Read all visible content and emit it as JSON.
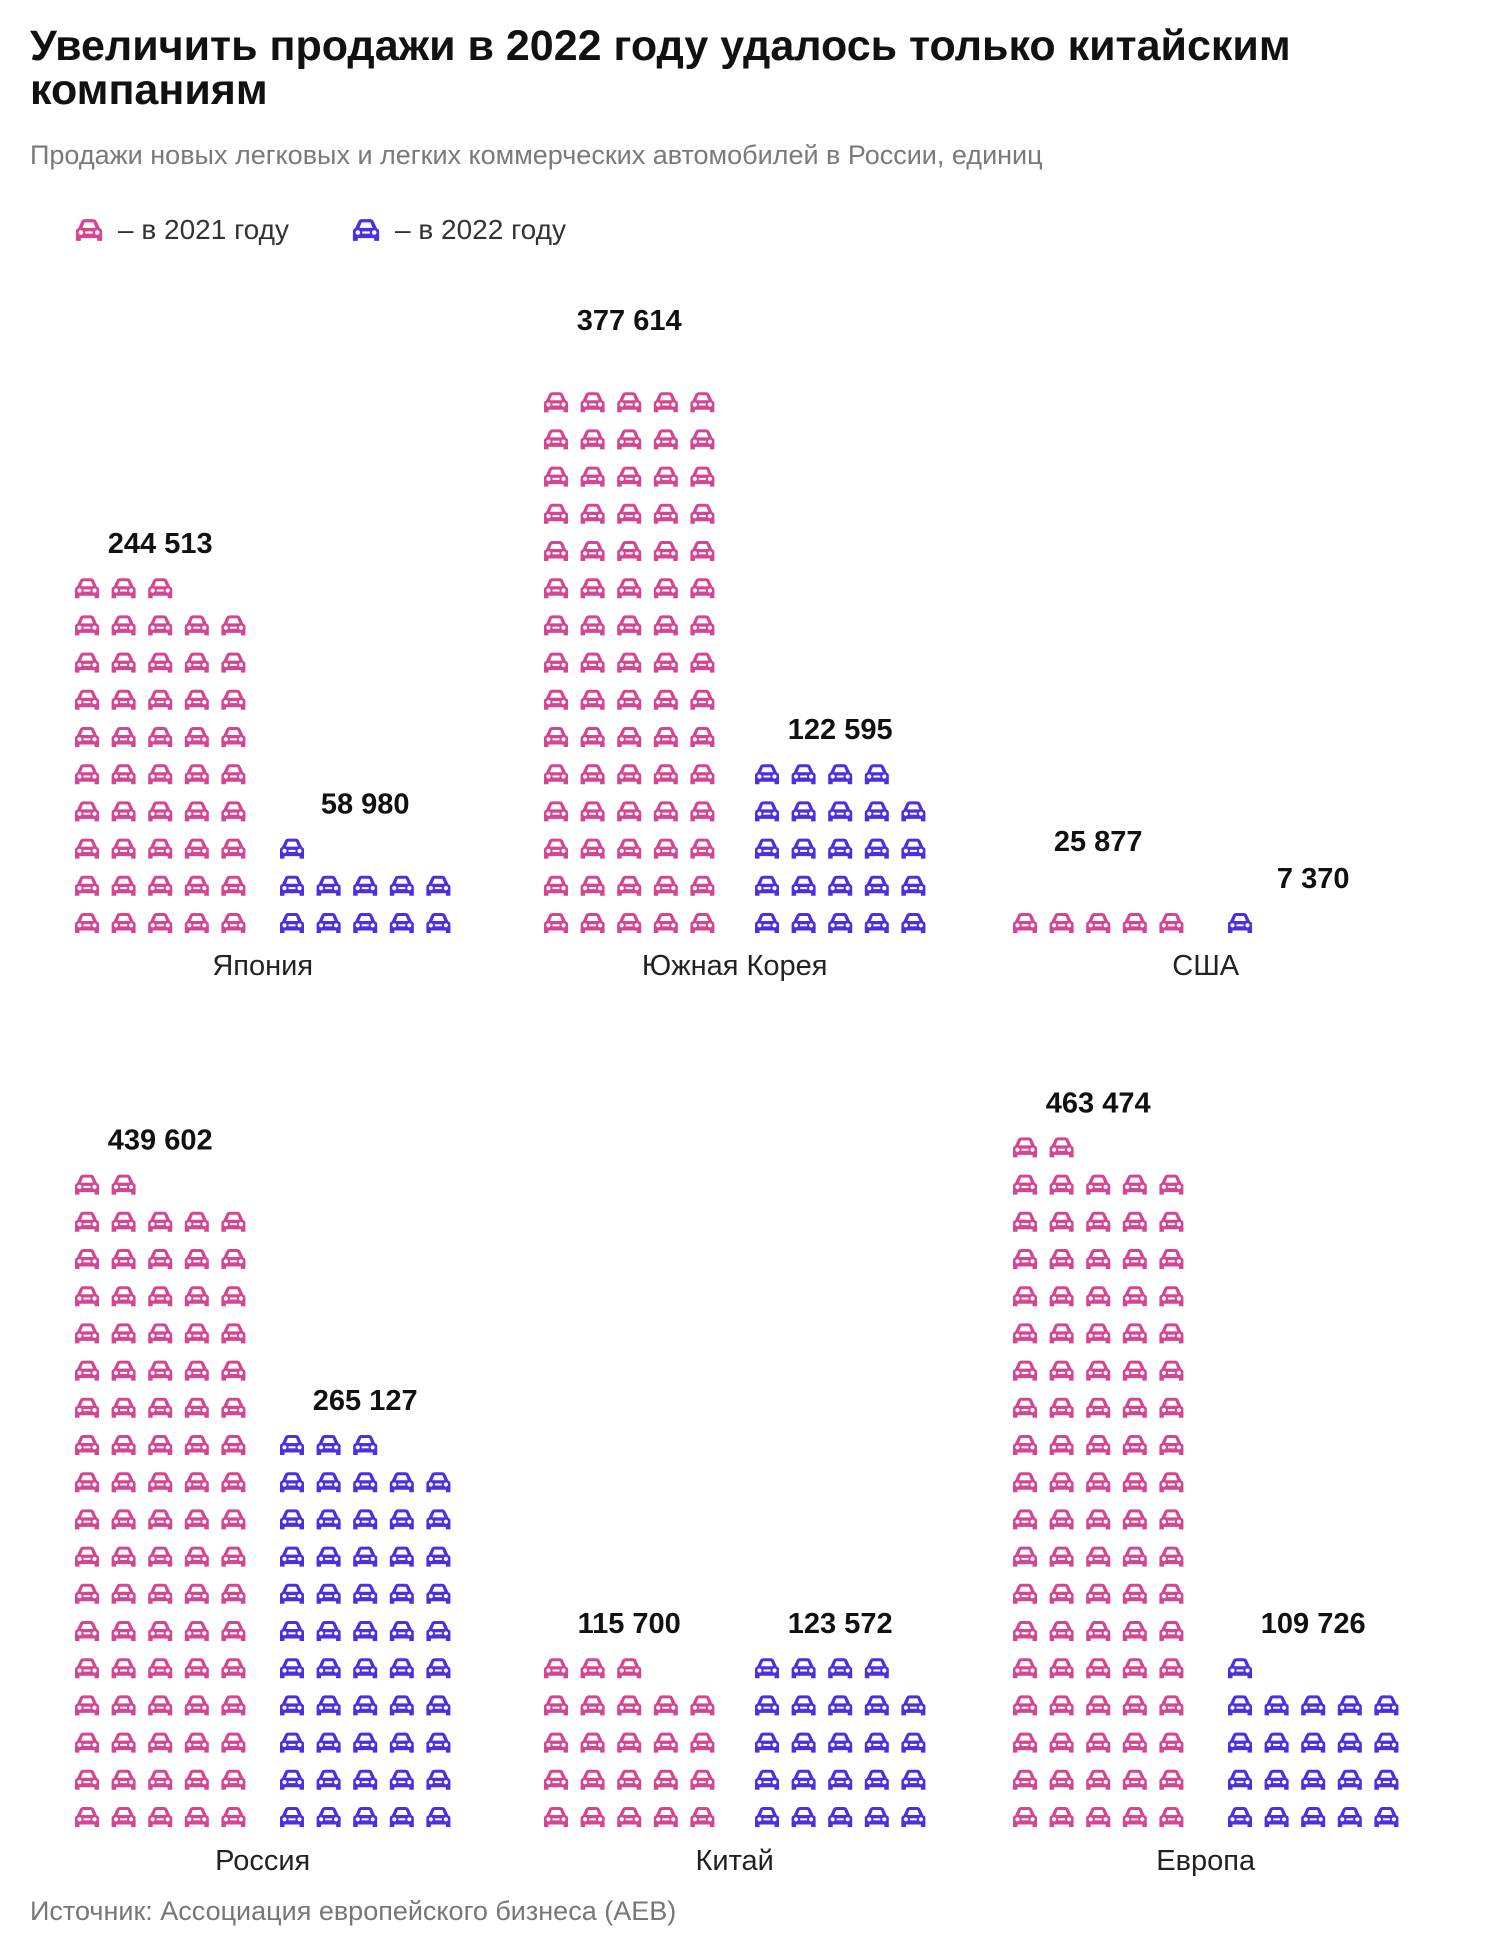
{
  "header": {
    "title": "Увеличить продажи в 2022 году удалось только китайским компаниям",
    "subtitle": "Продажи новых легковых и легких коммерческих автомобилей в России, единиц"
  },
  "legend": {
    "item_2021": "– в 2021 году",
    "item_2022": "– в 2022 году"
  },
  "source": "Источник: Ассоциация европейского бизнеса (AEB)",
  "colors": {
    "y2021": "#D44691",
    "y2022": "#4B2FE0"
  },
  "icon": "car-icon",
  "chart_data": {
    "type": "pictogram-bar",
    "unit_per_icon": 5000,
    "icons_per_row": 5,
    "series": [
      {
        "name": "– в 2021 году",
        "color": "#D44691"
      },
      {
        "name": "– в 2022 году",
        "color": "#4B2FE0"
      }
    ],
    "groups": [
      {
        "name": "Япония",
        "v2021": 244513,
        "v2022": 58980,
        "label2021": "244 513",
        "label2022": "58 980"
      },
      {
        "name": "Южная Корея",
        "v2021": 377614,
        "v2022": 122595,
        "label2021": "377 614",
        "label2022": "122 595"
      },
      {
        "name": "США",
        "v2021": 25877,
        "v2022": 7370,
        "label2021": "25 877",
        "label2022": "7 370"
      },
      {
        "name": "Россия",
        "v2021": 439602,
        "v2022": 265127,
        "label2021": "439 602",
        "label2022": "265 127"
      },
      {
        "name": "Китай",
        "v2021": 115700,
        "v2022": 123572,
        "label2021": "115 700",
        "label2022": "123 572"
      },
      {
        "name": "Европа",
        "v2021": 463474,
        "v2022": 109726,
        "label2021": "463 474",
        "label2022": "109 726"
      }
    ]
  }
}
